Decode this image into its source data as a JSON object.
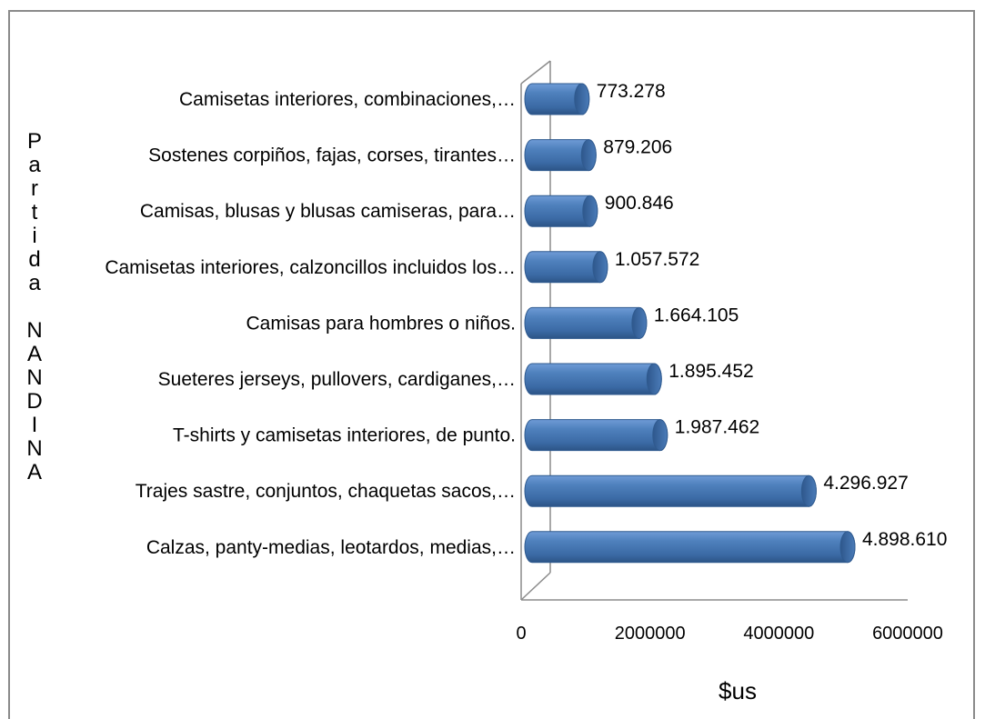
{
  "chart_data": {
    "type": "bar",
    "orientation": "horizontal",
    "style": "3d-cylinder",
    "title": "",
    "xlabel": "$us",
    "ylabel": "Partida NANDINA",
    "xlim": [
      0,
      6000000
    ],
    "xticks": [
      0,
      2000000,
      4000000,
      6000000
    ],
    "grid": false,
    "legend": "none",
    "bar_color": "#4f81bd",
    "categories": [
      "Camisetas interiores, combinaciones,…",
      "Sostenes corpiños, fajas, corses, tirantes…",
      "Camisas, blusas y blusas camiseras, para…",
      "Camisetas interiores, calzoncillos incluidos los…",
      "Camisas para hombres o niños.",
      "Sueteres jerseys, pullovers, cardiganes,…",
      "T-shirts y camisetas interiores, de punto.",
      "Trajes sastre, conjuntos, chaquetas sacos,…",
      "Calzas, panty-medias, leotardos, medias,…"
    ],
    "values": [
      773278,
      879206,
      900846,
      1057572,
      1664105,
      1895452,
      1987462,
      4296927,
      4898610
    ],
    "value_labels": [
      "773.278",
      "879.206",
      "900.846",
      "1.057.572",
      "1.664.105",
      "1.895.452",
      "1.987.462",
      "4.296.927",
      "4.898.610"
    ]
  }
}
